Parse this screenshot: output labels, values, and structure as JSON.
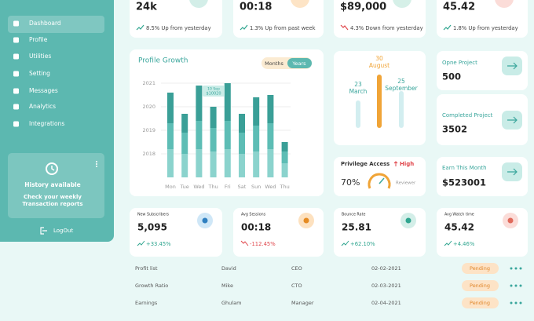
{
  "sidebar": {
    "menu": [
      "Dashboard",
      "Profile",
      "Utilities",
      "Setting",
      "Messages",
      "Analytics",
      "Integrations"
    ],
    "history": {
      "title": "History available",
      "text": [
        "Check your weekly",
        "Transaction reports"
      ]
    },
    "logout": "LogOut"
  },
  "top_cards": [
    {
      "value": "24k",
      "change": "8.5% Up from yesterday"
    },
    {
      "value": "00:18",
      "change": "1.3% Up from past week"
    },
    {
      "value": "$89,000",
      "change": "4.3% Down from yesterday"
    },
    {
      "value": "45.42",
      "change": "1.8% Up from yesterday"
    }
  ],
  "chart_data": {
    "type": "bar",
    "title": "Profile Growth",
    "toggle": [
      "Months",
      "Years"
    ],
    "categories": [
      "Mon",
      "Tue",
      "Wed",
      "Thu",
      "Fri",
      "Sat",
      "Sun",
      "Wed",
      "Thu"
    ],
    "series": [
      {
        "color": "#8bd3cd",
        "values": [
          1.2,
          1.0,
          1.2,
          1.1,
          1.2,
          1.0,
          1.1,
          1.2,
          0.6
        ]
      },
      {
        "color": "#5dbdb5",
        "values": [
          1.1,
          0.9,
          1.2,
          1.0,
          1.2,
          0.9,
          1.1,
          1.1,
          0.5
        ]
      },
      {
        "color": "#3a9f97",
        "values": [
          1.3,
          0.8,
          1.5,
          0.9,
          1.6,
          0.8,
          1.2,
          1.2,
          0.4
        ]
      }
    ],
    "ylim": [
      2017,
      2021.3
    ],
    "yticks": [
      2018,
      2019,
      2020,
      2021
    ],
    "grid": true,
    "tooltip": [
      "10 Sep",
      "$10020"
    ]
  },
  "timeline": [
    {
      "day": "30",
      "month": "August"
    },
    {
      "day": "23",
      "month": "March"
    },
    {
      "day": "25",
      "month": "September"
    }
  ],
  "privilege": {
    "title": "Privilege Access",
    "level": "High",
    "value": "70%",
    "role": "Reviewer"
  },
  "projects": [
    {
      "label": "Opne Project",
      "value": "500"
    },
    {
      "label": "Completed Project",
      "value": "3502"
    },
    {
      "label": "Earn This Month",
      "value": "$523001"
    }
  ],
  "stats": [
    {
      "label": "New Subscribers",
      "value": "5,095",
      "change": "+33.45%"
    },
    {
      "label": "Avg Sessions",
      "value": "00:18",
      "change": "-112.45%"
    },
    {
      "label": "Bounce Rate",
      "value": "25.81",
      "change": "+62.10%"
    },
    {
      "label": "Avg Watch time",
      "value": "45.42",
      "change": "+4.46%"
    }
  ],
  "table": {
    "rows": [
      [
        "Profit list",
        "David",
        "CEO",
        "02-02-2021",
        "Pending"
      ],
      [
        "Growth Ratio",
        "Mike",
        "CTO",
        "02-03-2021",
        "Pending"
      ],
      [
        "Earnings",
        "Ghulam",
        "Manager",
        "02-04-2021",
        "Pending"
      ]
    ]
  }
}
